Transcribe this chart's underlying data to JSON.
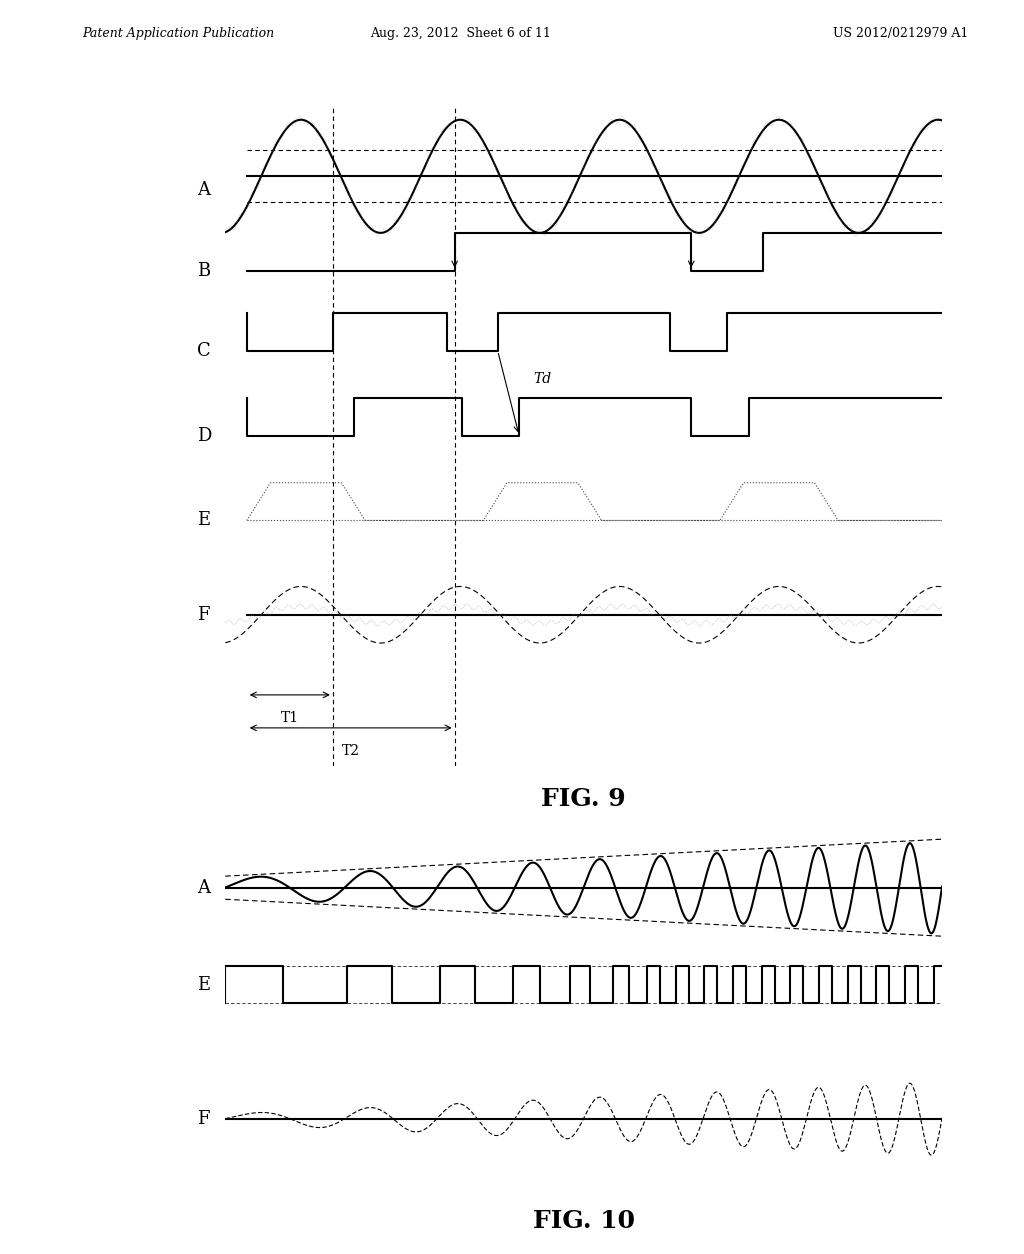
{
  "header_left": "Patent Application Publication",
  "header_center": "Aug. 23, 2012  Sheet 6 of 11",
  "header_right": "US 2012/0212979 A1",
  "fig9_title": "FIG. 9",
  "fig10_title": "FIG. 10",
  "bg_color": "#ffffff",
  "line_color": "#000000",
  "line_width": 1.5,
  "thin_line": 0.8,
  "dashed_color": "#555555"
}
